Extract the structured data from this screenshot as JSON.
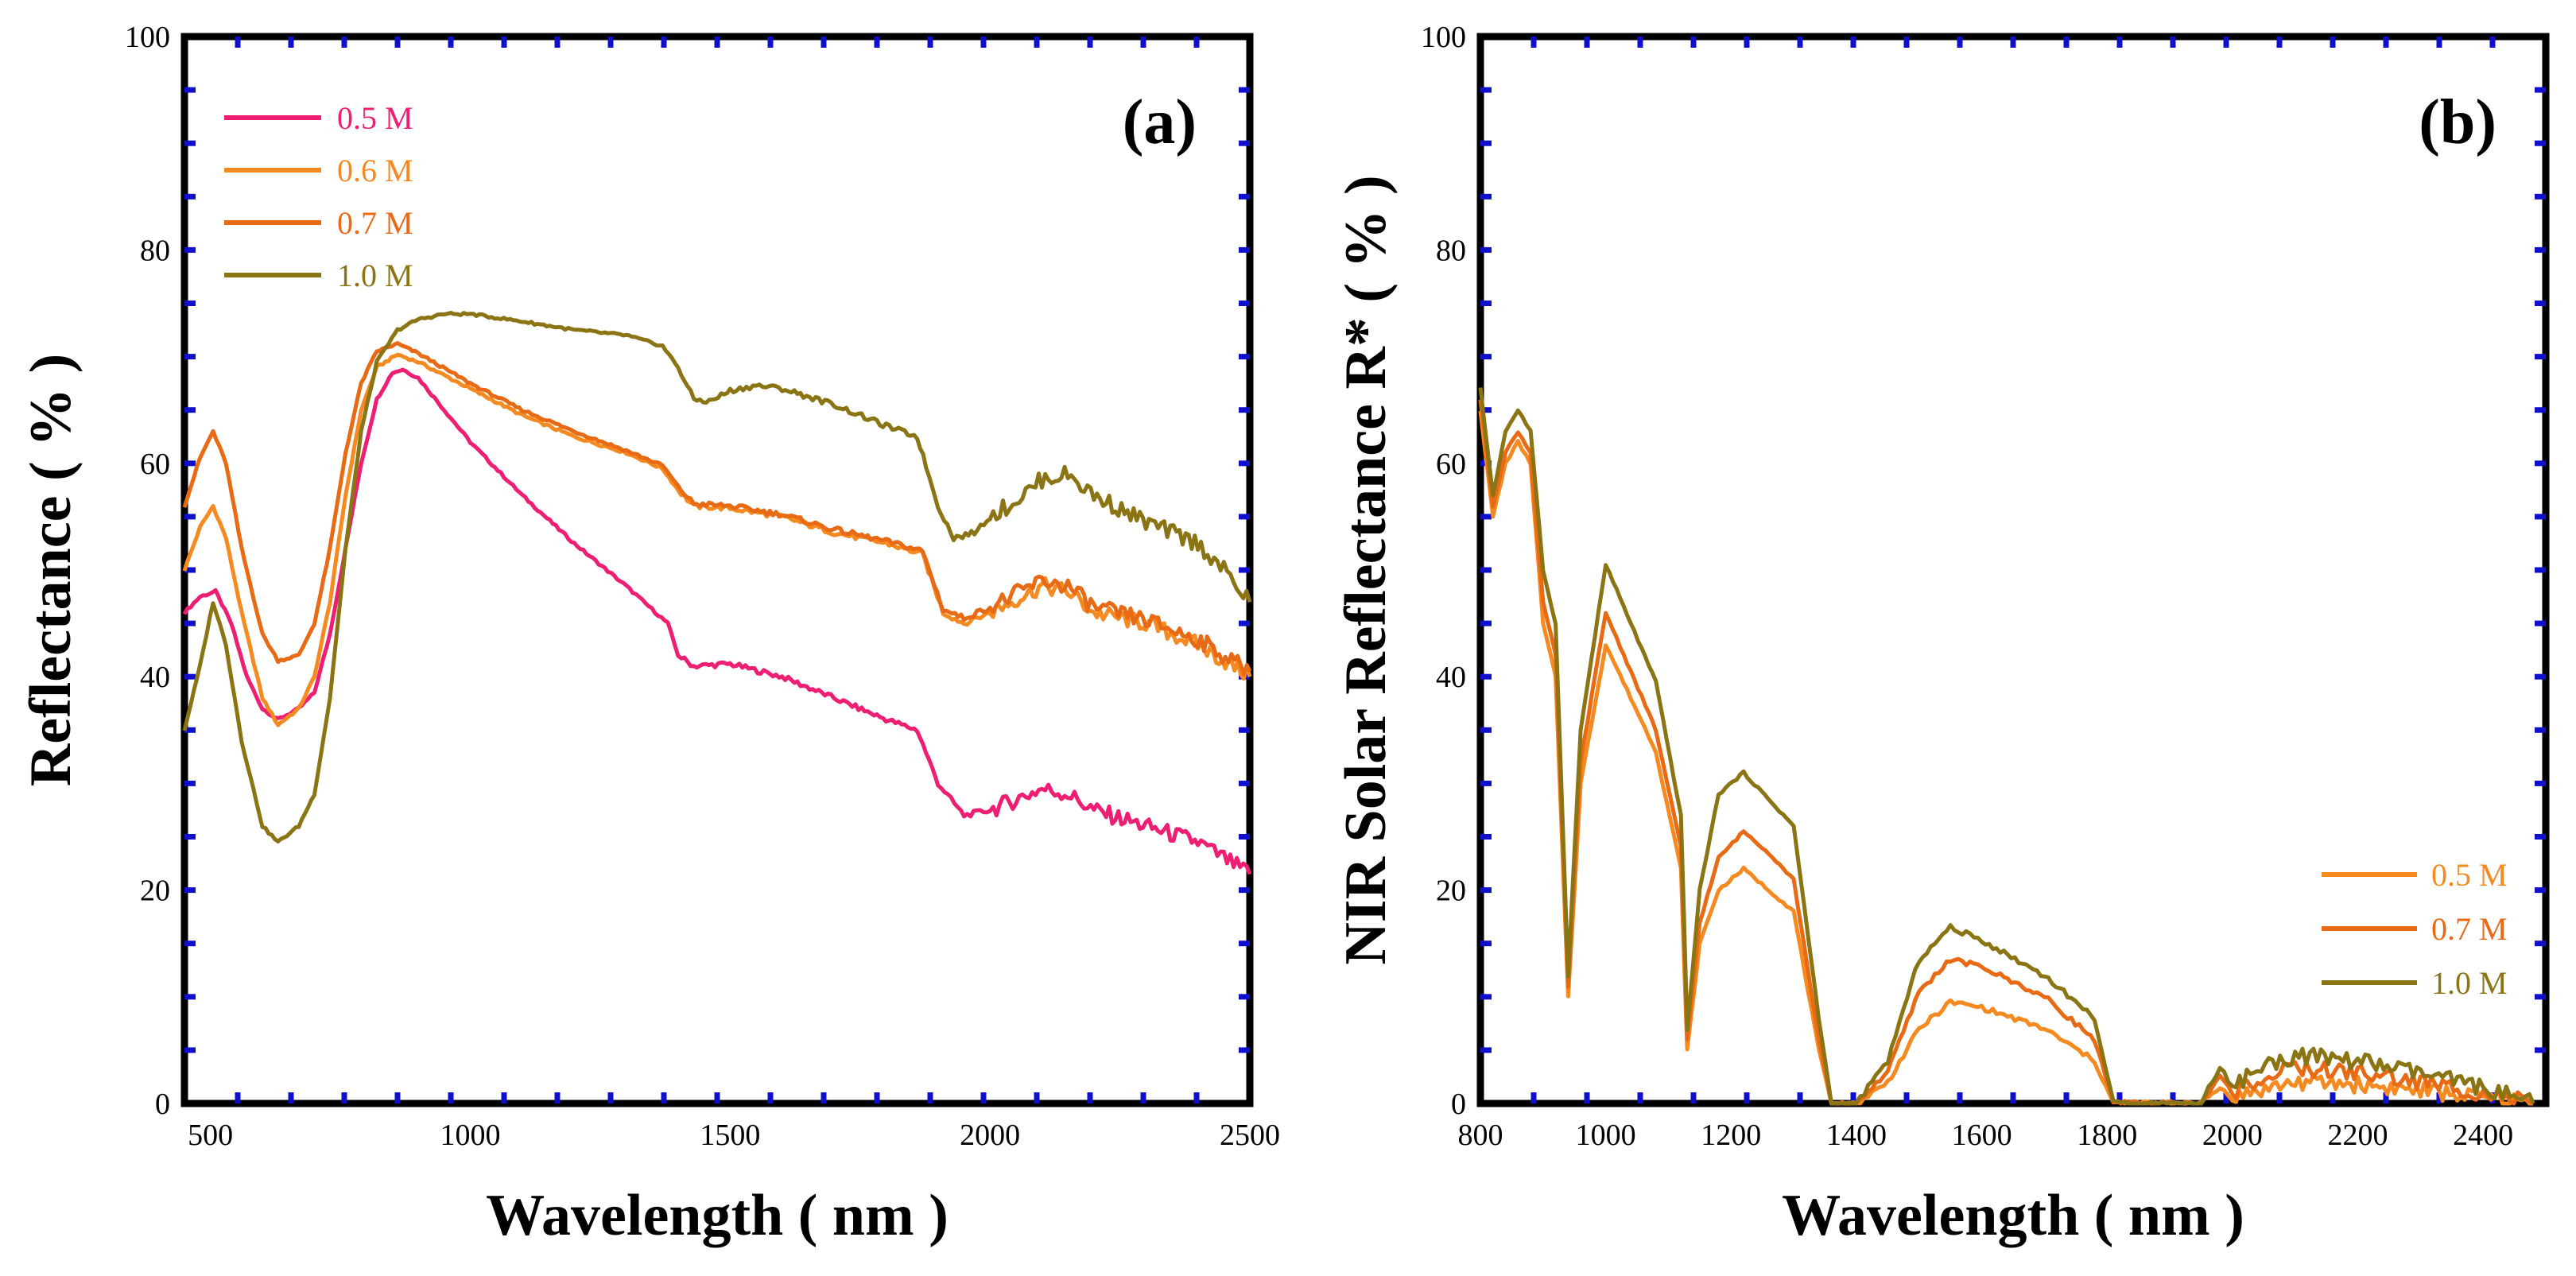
{
  "chart_data": [
    {
      "type": "line",
      "panel_label": "(a)",
      "xlabel": "Wavelength ( nm )",
      "ylabel": "Reflectance ( % )",
      "xlim": [
        450,
        2500
      ],
      "ylim": [
        0,
        100
      ],
      "xticks": [
        500,
        1000,
        1500,
        2000,
        2500
      ],
      "yticks": [
        0,
        20,
        40,
        60,
        80,
        100
      ],
      "legend_position": "top-left",
      "series": [
        {
          "name": "0.5 M",
          "color": "#ee1e73",
          "points": [
            [
              450,
              46
            ],
            [
              480,
              47.5
            ],
            [
              510,
              48
            ],
            [
              540,
              45
            ],
            [
              570,
              40
            ],
            [
              600,
              37
            ],
            [
              630,
              36
            ],
            [
              670,
              37
            ],
            [
              700,
              38.5
            ],
            [
              730,
              44
            ],
            [
              760,
              52
            ],
            [
              790,
              60
            ],
            [
              820,
              66
            ],
            [
              850,
              68.5
            ],
            [
              870,
              68.8
            ],
            [
              900,
              68
            ],
            [
              950,
              65
            ],
            [
              1000,
              62
            ],
            [
              1100,
              57
            ],
            [
              1200,
              52.5
            ],
            [
              1300,
              48.5
            ],
            [
              1380,
              45
            ],
            [
              1400,
              42
            ],
            [
              1430,
              41
            ],
            [
              1500,
              41.2
            ],
            [
              1600,
              40
            ],
            [
              1700,
              38
            ],
            [
              1800,
              36
            ],
            [
              1860,
              35
            ],
            [
              1900,
              30
            ],
            [
              1950,
              27
            ],
            [
              2000,
              27.5
            ],
            [
              2050,
              28.5
            ],
            [
              2100,
              29.5
            ],
            [
              2150,
              29
            ],
            [
              2200,
              27.5
            ],
            [
              2300,
              26
            ],
            [
              2400,
              24.5
            ],
            [
              2450,
              23
            ],
            [
              2500,
              21.5
            ]
          ]
        },
        {
          "name": "0.6 M",
          "color": "#f58a20",
          "points": [
            [
              450,
              50
            ],
            [
              480,
              54
            ],
            [
              505,
              56
            ],
            [
              530,
              53
            ],
            [
              560,
              46
            ],
            [
              600,
              38
            ],
            [
              630,
              35.5
            ],
            [
              670,
              37
            ],
            [
              700,
              40
            ],
            [
              730,
              47
            ],
            [
              760,
              57
            ],
            [
              790,
              65
            ],
            [
              820,
              69
            ],
            [
              860,
              70.2
            ],
            [
              900,
              69.5
            ],
            [
              1000,
              67
            ],
            [
              1100,
              64.5
            ],
            [
              1200,
              62.5
            ],
            [
              1300,
              61
            ],
            [
              1370,
              59.5
            ],
            [
              1400,
              57.5
            ],
            [
              1430,
              56
            ],
            [
              1500,
              55.8
            ],
            [
              1600,
              55
            ],
            [
              1700,
              53.5
            ],
            [
              1800,
              52.5
            ],
            [
              1870,
              51.5
            ],
            [
              1910,
              46
            ],
            [
              1950,
              45
            ],
            [
              2000,
              46
            ],
            [
              2100,
              48.5
            ],
            [
              2150,
              48
            ],
            [
              2200,
              46
            ],
            [
              2300,
              45
            ],
            [
              2400,
              43
            ],
            [
              2500,
              40
            ]
          ]
        },
        {
          "name": "0.7 M",
          "color": "#e96a14",
          "points": [
            [
              450,
              56
            ],
            [
              480,
              60.5
            ],
            [
              505,
              63
            ],
            [
              530,
              60
            ],
            [
              560,
              52
            ],
            [
              600,
              44
            ],
            [
              630,
              41.5
            ],
            [
              670,
              42
            ],
            [
              700,
              45
            ],
            [
              730,
              52
            ],
            [
              760,
              61
            ],
            [
              790,
              67.5
            ],
            [
              820,
              70.5
            ],
            [
              860,
              71.2
            ],
            [
              900,
              70.3
            ],
            [
              1000,
              67.5
            ],
            [
              1100,
              65
            ],
            [
              1200,
              63
            ],
            [
              1300,
              61.2
            ],
            [
              1370,
              59.8
            ],
            [
              1400,
              57.8
            ],
            [
              1430,
              56.2
            ],
            [
              1500,
              56
            ],
            [
              1600,
              55.2
            ],
            [
              1700,
              53.8
            ],
            [
              1800,
              52.7
            ],
            [
              1870,
              51.8
            ],
            [
              1910,
              46.3
            ],
            [
              1950,
              45.5
            ],
            [
              2000,
              46.5
            ],
            [
              2100,
              49
            ],
            [
              2150,
              48.5
            ],
            [
              2200,
              46.5
            ],
            [
              2300,
              45.3
            ],
            [
              2400,
              43.5
            ],
            [
              2500,
              40.5
            ]
          ]
        },
        {
          "name": "1.0 M",
          "color": "#8b7414",
          "points": [
            [
              450,
              35
            ],
            [
              480,
              41
            ],
            [
              505,
              47
            ],
            [
              530,
              43
            ],
            [
              560,
              34
            ],
            [
              600,
              26
            ],
            [
              630,
              24.5
            ],
            [
              670,
              26
            ],
            [
              700,
              29
            ],
            [
              730,
              38
            ],
            [
              760,
              52
            ],
            [
              790,
              63
            ],
            [
              820,
              69.5
            ],
            [
              860,
              72.5
            ],
            [
              900,
              73.5
            ],
            [
              950,
              74
            ],
            [
              1000,
              74
            ],
            [
              1100,
              73.3
            ],
            [
              1200,
              72.5
            ],
            [
              1300,
              72
            ],
            [
              1370,
              71
            ],
            [
              1400,
              69
            ],
            [
              1430,
              66
            ],
            [
              1460,
              65.8
            ],
            [
              1500,
              66.8
            ],
            [
              1550,
              67.3
            ],
            [
              1600,
              67
            ],
            [
              1700,
              65.5
            ],
            [
              1800,
              63.5
            ],
            [
              1860,
              62.5
            ],
            [
              1900,
              56
            ],
            [
              1930,
              53
            ],
            [
              1970,
              53.5
            ],
            [
              2000,
              55
            ],
            [
              2050,
              56.5
            ],
            [
              2100,
              58.5
            ],
            [
              2150,
              59
            ],
            [
              2200,
              57
            ],
            [
              2300,
              54.5
            ],
            [
              2400,
              52.5
            ],
            [
              2450,
              50
            ],
            [
              2500,
              47
            ]
          ]
        }
      ]
    },
    {
      "type": "line",
      "panel_label": "(b)",
      "xlabel": "Wavelength ( nm )",
      "ylabel": "NIR Solar Reflectance R* ( % )",
      "xlim": [
        800,
        2500
      ],
      "ylim": [
        0,
        100
      ],
      "xticks": [
        800,
        1000,
        1200,
        1400,
        1600,
        1800,
        2000,
        2200,
        2400
      ],
      "yticks": [
        0,
        20,
        40,
        60,
        80,
        100
      ],
      "legend_position": "bottom-right",
      "series": [
        {
          "name": "0.5 M",
          "color": "#f58a20",
          "points": [
            [
              800,
              65
            ],
            [
              820,
              55
            ],
            [
              840,
              60
            ],
            [
              860,
              62
            ],
            [
              880,
              60
            ],
            [
              900,
              45
            ],
            [
              920,
              40
            ],
            [
              940,
              10
            ],
            [
              960,
              30
            ],
            [
              1000,
              43
            ],
            [
              1040,
              38
            ],
            [
              1080,
              33
            ],
            [
              1120,
              22
            ],
            [
              1130,
              5
            ],
            [
              1150,
              15
            ],
            [
              1180,
              20
            ],
            [
              1220,
              22
            ],
            [
              1260,
              20
            ],
            [
              1300,
              18
            ],
            [
              1340,
              5
            ],
            [
              1360,
              0
            ],
            [
              1400,
              0
            ],
            [
              1450,
              2
            ],
            [
              1500,
              7
            ],
            [
              1550,
              9.5
            ],
            [
              1600,
              9
            ],
            [
              1700,
              7
            ],
            [
              1780,
              4
            ],
            [
              1810,
              0
            ],
            [
              1950,
              0
            ],
            [
              1980,
              1.5
            ],
            [
              2000,
              0.5
            ],
            [
              2040,
              1.2
            ],
            [
              2100,
              2
            ],
            [
              2200,
              1.8
            ],
            [
              2300,
              1.2
            ],
            [
              2400,
              0.6
            ],
            [
              2480,
              0
            ]
          ]
        },
        {
          "name": "0.7 M",
          "color": "#e96a14",
          "points": [
            [
              800,
              66
            ],
            [
              820,
              56
            ],
            [
              840,
              61
            ],
            [
              860,
              63
            ],
            [
              880,
              61
            ],
            [
              900,
              47
            ],
            [
              920,
              42
            ],
            [
              940,
              11
            ],
            [
              960,
              32
            ],
            [
              1000,
              46
            ],
            [
              1040,
              40.5
            ],
            [
              1080,
              35
            ],
            [
              1120,
              24
            ],
            [
              1130,
              6
            ],
            [
              1150,
              17
            ],
            [
              1180,
              23
            ],
            [
              1220,
              25.5
            ],
            [
              1260,
              23.5
            ],
            [
              1300,
              21
            ],
            [
              1340,
              6
            ],
            [
              1360,
              0
            ],
            [
              1400,
              0
            ],
            [
              1450,
              3
            ],
            [
              1500,
              10.5
            ],
            [
              1550,
              13.5
            ],
            [
              1600,
              12.8
            ],
            [
              1700,
              10
            ],
            [
              1780,
              6
            ],
            [
              1810,
              0
            ],
            [
              1950,
              0
            ],
            [
              1980,
              2.5
            ],
            [
              2000,
              1
            ],
            [
              2040,
              2.2
            ],
            [
              2100,
              3.3
            ],
            [
              2200,
              2.9
            ],
            [
              2300,
              2
            ],
            [
              2400,
              1
            ],
            [
              2480,
              0
            ]
          ]
        },
        {
          "name": "1.0 M",
          "color": "#8b7414",
          "points": [
            [
              800,
              67
            ],
            [
              820,
              57
            ],
            [
              840,
              63
            ],
            [
              860,
              65
            ],
            [
              880,
              63
            ],
            [
              900,
              50
            ],
            [
              920,
              45
            ],
            [
              940,
              12
            ],
            [
              960,
              35
            ],
            [
              1000,
              50.5
            ],
            [
              1040,
              45
            ],
            [
              1080,
              39.5
            ],
            [
              1120,
              27
            ],
            [
              1130,
              7
            ],
            [
              1150,
              20
            ],
            [
              1180,
              29
            ],
            [
              1220,
              31
            ],
            [
              1260,
              28.5
            ],
            [
              1300,
              26
            ],
            [
              1340,
              8
            ],
            [
              1360,
              0
            ],
            [
              1400,
              0
            ],
            [
              1450,
              4
            ],
            [
              1500,
              13.5
            ],
            [
              1550,
              16.5
            ],
            [
              1600,
              15.3
            ],
            [
              1700,
              12
            ],
            [
              1780,
              8
            ],
            [
              1810,
              0
            ],
            [
              1950,
              0
            ],
            [
              1980,
              3.5
            ],
            [
              2000,
              1.5
            ],
            [
              2040,
              3.3
            ],
            [
              2100,
              4.5
            ],
            [
              2200,
              4
            ],
            [
              2300,
              2.8
            ],
            [
              2400,
              1.5
            ],
            [
              2480,
              0
            ]
          ]
        }
      ]
    }
  ]
}
